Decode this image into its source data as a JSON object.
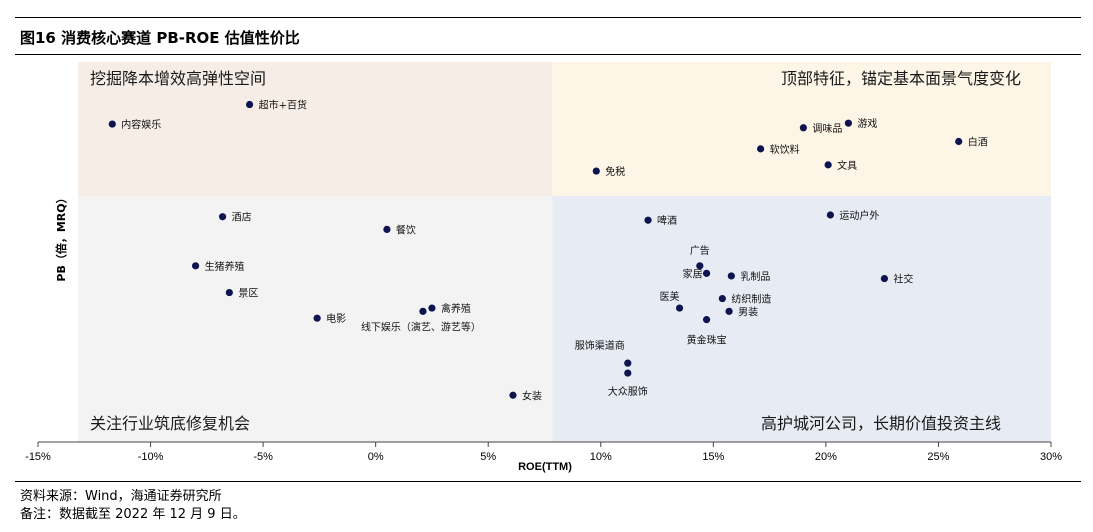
{
  "figure": {
    "title": "图16 消费核心赛道 PB-ROE 估值性价比",
    "source": "资料来源：Wind，海通证券研究所",
    "note": "备注：数据截至 2022 年 12 月 9 日。"
  },
  "colors": {
    "topLeft": "#f6ede7",
    "topRight": "#fdf5e6",
    "bottomLeft": "#f3f3f3",
    "bottomRight": "#e7ebf4",
    "dot": "#0e1450"
  },
  "chart_data": {
    "type": "scatter",
    "xlabel": "ROE(TTM)",
    "ylabel": "PB（倍，MRQ）",
    "xlim": [
      -0.15,
      0.3
    ],
    "xticks": [
      -0.15,
      -0.1,
      -0.05,
      0,
      0.05,
      0.1,
      0.15,
      0.2,
      0.25,
      0.3
    ],
    "xtick_labels": [
      "-15%",
      "-10%",
      "-5%",
      "0%",
      "5%",
      "10%",
      "15%",
      "20%",
      "25%",
      "30%"
    ],
    "x_divider": 0.0785,
    "quadrants": {
      "top_left": "挖掘降本增效高弹性空间",
      "top_right": "顶部特征，锚定基本面景气度变化",
      "bottom_left": "关注行业筑底修复机会",
      "bottom_right": "高护城河公司，长期价值投资主线"
    },
    "points": [
      {
        "label": "超市+百货",
        "x": -0.056,
        "y": 8.8
      },
      {
        "label": "内容娱乐",
        "x": -0.117,
        "y": 7.65
      },
      {
        "label": "游戏",
        "x": 0.21,
        "y": 7.7
      },
      {
        "label": "调味品",
        "x": 0.19,
        "y": 7.45
      },
      {
        "label": "白酒",
        "x": 0.259,
        "y": 6.75
      },
      {
        "label": "软饮料",
        "x": 0.171,
        "y": 6.4
      },
      {
        "label": "文具",
        "x": 0.201,
        "y": 5.7
      },
      {
        "label": "免税",
        "x": 0.098,
        "y": 5.45
      },
      {
        "label": "酒店",
        "x": -0.068,
        "y": 3.9
      },
      {
        "label": "运动户外",
        "x": 0.202,
        "y": 3.95
      },
      {
        "label": "啤酒",
        "x": 0.121,
        "y": 3.8
      },
      {
        "label": "餐饮",
        "x": 0.005,
        "y": 3.55
      },
      {
        "label": "广告",
        "x": 0.144,
        "y": 2.7
      },
      {
        "label": "家居",
        "x": 0.147,
        "y": 2.55
      },
      {
        "label": "乳制品",
        "x": 0.158,
        "y": 2.5
      },
      {
        "label": "生猪养殖",
        "x": -0.08,
        "y": 2.7
      },
      {
        "label": "社交",
        "x": 0.226,
        "y": 2.45
      },
      {
        "label": "医美",
        "x": 0.135,
        "y": 1.95
      },
      {
        "label": "纺织制造",
        "x": 0.154,
        "y": 2.1
      },
      {
        "label": "景区",
        "x": -0.065,
        "y": 2.2
      },
      {
        "label": "男装",
        "x": 0.157,
        "y": 1.9
      },
      {
        "label": "禽养殖",
        "x": 0.025,
        "y": 1.95
      },
      {
        "label": "线下娱乐（演艺、游艺等）",
        "x": 0.021,
        "y": 1.9
      },
      {
        "label": "电影",
        "x": -0.026,
        "y": 1.8
      },
      {
        "label": "黄金珠宝",
        "x": 0.147,
        "y": 1.78
      },
      {
        "label": "服饰渠道商",
        "x": 0.112,
        "y": 1.25
      },
      {
        "label": "大众服饰",
        "x": 0.112,
        "y": 1.15
      },
      {
        "label": "女装",
        "x": 0.061,
        "y": 0.95
      }
    ]
  }
}
